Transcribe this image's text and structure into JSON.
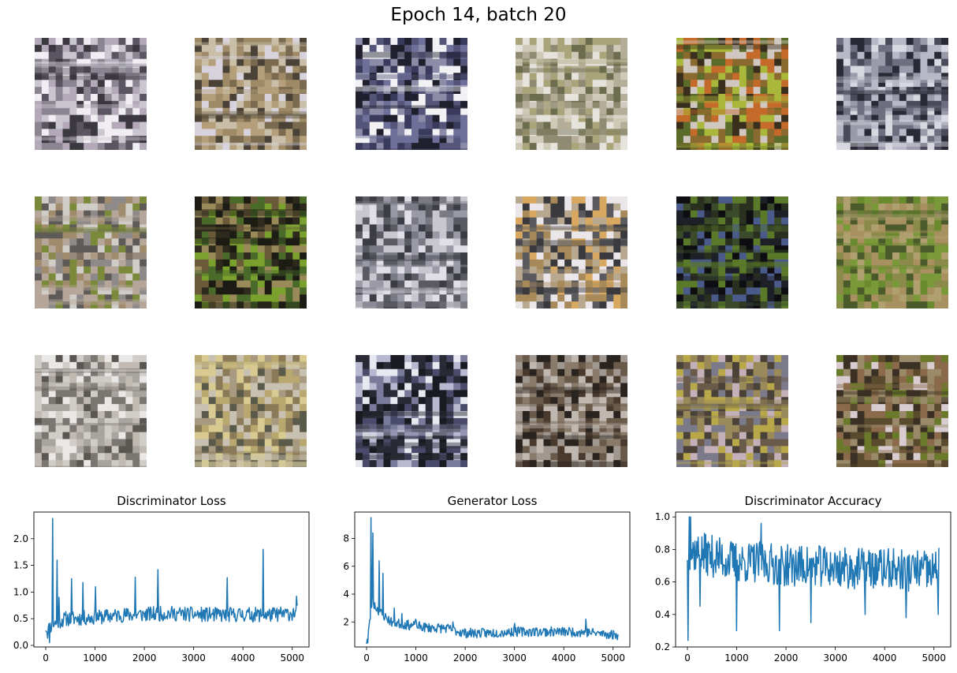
{
  "figure": {
    "title": "Epoch 14, batch 20"
  },
  "samples": {
    "rows": 3,
    "cols": 6,
    "tiles": [
      {
        "palette": [
          "#8a8590",
          "#c9c6cf",
          "#5a5560",
          "#b3a9b8",
          "#f0eef2",
          "#3b3840"
        ]
      },
      {
        "palette": [
          "#b49f7a",
          "#7a6a50",
          "#d8d2dc",
          "#9e8a66",
          "#4a4236",
          "#c9bfa8"
        ]
      },
      {
        "palette": [
          "#3a3a5c",
          "#6f7099",
          "#f2f2f5",
          "#1f1f2e",
          "#8c8ca8",
          "#55557a"
        ]
      },
      {
        "palette": [
          "#8f8a72",
          "#b4ae98",
          "#e6e2dc",
          "#6c6c4e",
          "#a9a47a",
          "#cfc9b8"
        ]
      },
      {
        "palette": [
          "#8a6a2e",
          "#c46a2a",
          "#5b6b2a",
          "#3a2e1c",
          "#a9b83a",
          "#d0c8c0"
        ]
      },
      {
        "palette": [
          "#4a4a5a",
          "#9a9aaa",
          "#d8d8e0",
          "#2a2a36",
          "#6e6e80",
          "#b8b8c6"
        ]
      },
      {
        "palette": [
          "#8f8a8a",
          "#b6a69a",
          "#5e5a58",
          "#a08c6c",
          "#d0ccc8",
          "#7a8a3a"
        ]
      },
      {
        "palette": [
          "#4a6a2a",
          "#7aa02e",
          "#2e2a1e",
          "#6a5a3a",
          "#9a8a5a",
          "#1c1c14"
        ]
      },
      {
        "palette": [
          "#9a9aa6",
          "#c8c6ce",
          "#5a5a62",
          "#7a7a84",
          "#e0dee6",
          "#3c3c44"
        ]
      },
      {
        "palette": [
          "#a88a5a",
          "#d8a860",
          "#5a5a5e",
          "#eae6ea",
          "#3a3a3e",
          "#b8a890"
        ]
      },
      {
        "palette": [
          "#1e2028",
          "#3a4a2a",
          "#4a5a8a",
          "#2a3020",
          "#5a7a2a",
          "#0e0e12"
        ]
      },
      {
        "palette": [
          "#8a8a4a",
          "#6a8a2e",
          "#a89060",
          "#4a5a2a",
          "#b0a070",
          "#7a9a3a"
        ]
      },
      {
        "palette": [
          "#d0ccc8",
          "#a8a4a0",
          "#7a7672",
          "#eae8e6",
          "#5a5652",
          "#c0bab2"
        ]
      },
      {
        "palette": [
          "#b8a870",
          "#8a7a58",
          "#d8ca90",
          "#5a5a4a",
          "#a89a80",
          "#c8c0b0"
        ]
      },
      {
        "palette": [
          "#2a2a36",
          "#4a4a6a",
          "#e8e8f0",
          "#7a7a9a",
          "#1a1a22",
          "#b8b8d0"
        ]
      },
      {
        "palette": [
          "#4a3a2e",
          "#8a7a6a",
          "#c0b8b0",
          "#2a2420",
          "#a09890",
          "#6a5a4a"
        ]
      },
      {
        "palette": [
          "#6a5a4a",
          "#9a8a5a",
          "#c4b0b8",
          "#4a4238",
          "#b8a84a",
          "#7a7a8a"
        ]
      },
      {
        "palette": [
          "#5a4a2e",
          "#6a7a2a",
          "#d8ccd0",
          "#3a3024",
          "#9a8a6a",
          "#8a6a4a"
        ]
      }
    ]
  },
  "chart_data": [
    {
      "type": "line",
      "title": "Discriminator Loss",
      "xlabel": "",
      "ylabel": "",
      "xlim": [
        -240,
        5340
      ],
      "ylim": [
        -0.03,
        2.5
      ],
      "xticks": [
        0,
        1000,
        2000,
        3000,
        4000,
        5000
      ],
      "xtick_labels": [
        "0",
        "1000",
        "2000",
        "3000",
        "4000",
        "5000"
      ],
      "yticks": [
        0.0,
        0.5,
        1.0,
        1.5,
        2.0
      ],
      "ytick_labels": [
        "0.0",
        "0.5",
        "1.0",
        "1.5",
        "2.0"
      ],
      "grid": false,
      "color": "#1f77b4",
      "x_end": 5100,
      "n_points": 400,
      "seed": 11,
      "noise": 0.14,
      "baseline": [
        [
          0,
          0.35
        ],
        [
          40,
          0.25
        ],
        [
          80,
          0.35
        ],
        [
          200,
          0.42
        ],
        [
          400,
          0.5
        ],
        [
          1000,
          0.52
        ],
        [
          1500,
          0.57
        ],
        [
          2000,
          0.58
        ],
        [
          2500,
          0.6
        ],
        [
          3000,
          0.58
        ],
        [
          3500,
          0.57
        ],
        [
          4000,
          0.58
        ],
        [
          4500,
          0.57
        ],
        [
          5000,
          0.6
        ],
        [
          5100,
          0.62
        ]
      ],
      "spikes": [
        [
          80,
          0.05
        ],
        [
          140,
          2.38
        ],
        [
          230,
          1.6
        ],
        [
          270,
          0.9
        ],
        [
          520,
          1.25
        ],
        [
          760,
          1.18
        ],
        [
          1010,
          1.1
        ],
        [
          1810,
          1.28
        ],
        [
          2270,
          1.42
        ],
        [
          3680,
          1.27
        ],
        [
          4410,
          1.8
        ],
        [
          5090,
          0.92
        ]
      ],
      "series": [
        {
          "values": []
        }
      ]
    },
    {
      "type": "line",
      "title": "Generator Loss",
      "xlabel": "",
      "ylabel": "",
      "xlim": [
        -240,
        5340
      ],
      "ylim": [
        0.2,
        9.9
      ],
      "xticks": [
        0,
        1000,
        2000,
        3000,
        4000,
        5000
      ],
      "xtick_labels": [
        "0",
        "1000",
        "2000",
        "3000",
        "4000",
        "5000"
      ],
      "yticks": [
        2,
        4,
        6,
        8
      ],
      "ytick_labels": [
        "2",
        "4",
        "6",
        "8"
      ],
      "grid": false,
      "color": "#1f77b4",
      "x_end": 5100,
      "n_points": 400,
      "seed": 23,
      "noise": 0.35,
      "baseline": [
        [
          0,
          0.6
        ],
        [
          60,
          1.8
        ],
        [
          110,
          3.5
        ],
        [
          200,
          3.0
        ],
        [
          300,
          2.6
        ],
        [
          500,
          2.0
        ],
        [
          800,
          1.8
        ],
        [
          1200,
          1.6
        ],
        [
          1600,
          1.55
        ],
        [
          2000,
          1.2
        ],
        [
          2500,
          1.2
        ],
        [
          3000,
          1.3
        ],
        [
          3500,
          1.3
        ],
        [
          4000,
          1.3
        ],
        [
          4500,
          1.25
        ],
        [
          5100,
          1.05
        ]
      ],
      "spikes": [
        [
          20,
          0.5
        ],
        [
          90,
          9.5
        ],
        [
          130,
          8.4
        ],
        [
          250,
          6.4
        ],
        [
          330,
          5.5
        ],
        [
          560,
          3.0
        ],
        [
          720,
          2.6
        ],
        [
          1000,
          2.2
        ],
        [
          1750,
          2.0
        ],
        [
          3000,
          1.9
        ],
        [
          4450,
          2.2
        ],
        [
          5080,
          1.0
        ]
      ],
      "series": [
        {
          "values": []
        }
      ]
    },
    {
      "type": "line",
      "title": "Discriminator Accuracy",
      "xlabel": "",
      "ylabel": "",
      "xlim": [
        -240,
        5340
      ],
      "ylim": [
        0.2,
        1.03
      ],
      "xticks": [
        0,
        1000,
        2000,
        3000,
        4000,
        5000
      ],
      "xtick_labels": [
        "0",
        "1000",
        "2000",
        "3000",
        "4000",
        "5000"
      ],
      "yticks": [
        0.2,
        0.4,
        0.6,
        0.8,
        1.0
      ],
      "ytick_labels": [
        "0.2",
        "0.4",
        "0.6",
        "0.8",
        "1.0"
      ],
      "grid": false,
      "color": "#1f77b4",
      "x_end": 5100,
      "n_points": 400,
      "seed": 37,
      "noise": 0.13,
      "baseline": [
        [
          0,
          0.8
        ],
        [
          200,
          0.78
        ],
        [
          500,
          0.76
        ],
        [
          1000,
          0.72
        ],
        [
          1500,
          0.72
        ],
        [
          2000,
          0.7
        ],
        [
          2500,
          0.7
        ],
        [
          3000,
          0.69
        ],
        [
          3500,
          0.68
        ],
        [
          4000,
          0.68
        ],
        [
          4500,
          0.67
        ],
        [
          5100,
          0.66
        ]
      ],
      "spikes": [
        [
          10,
          0.24
        ],
        [
          40,
          1.0
        ],
        [
          70,
          1.0
        ],
        [
          250,
          0.45
        ],
        [
          1000,
          0.3
        ],
        [
          1500,
          0.96
        ],
        [
          1870,
          0.3
        ],
        [
          2500,
          0.35
        ],
        [
          3600,
          0.4
        ],
        [
          4440,
          0.38
        ],
        [
          5090,
          0.4
        ],
        [
          5095,
          0.81
        ]
      ],
      "series": [
        {
          "values": []
        }
      ]
    }
  ]
}
